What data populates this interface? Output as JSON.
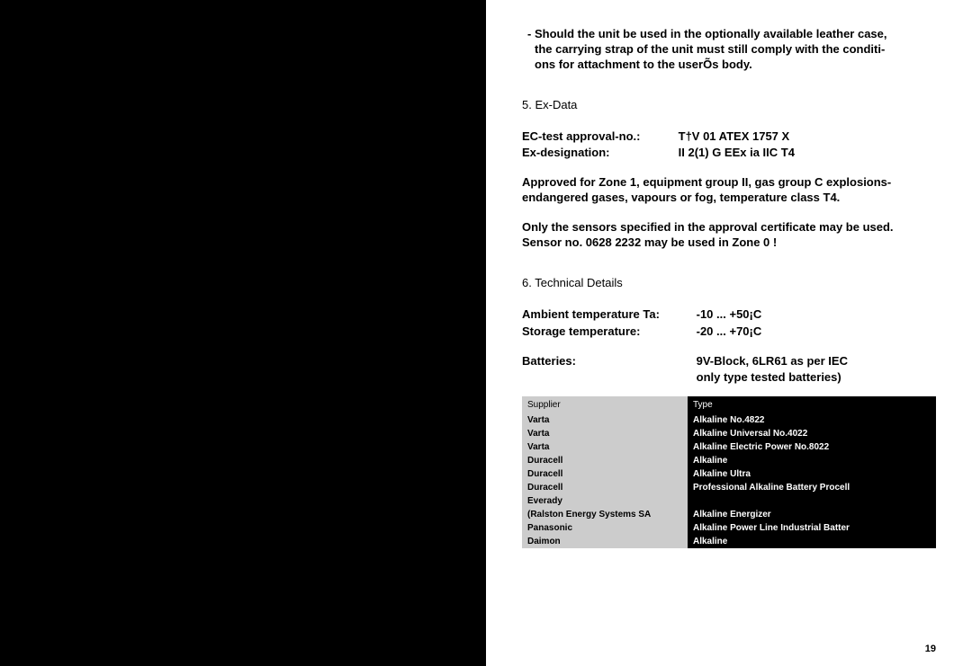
{
  "intro_bullet": {
    "marker": "-",
    "line1": "Should the unit be used in the optionally available leather case,",
    "line2": "the carrying strap of the unit must still comply with the conditi-",
    "line3": "ons for attachment to the userÕs body."
  },
  "section5_title": "5. Ex-Data",
  "ec_approval": {
    "label": "EC-test approval-no.:",
    "value": "T†V 01 ATEX 1757 X"
  },
  "ex_designation": {
    "label": "Ex-designation:",
    "value": "II 2(1) G   EEx ia IIC T4"
  },
  "approved_text": "Approved for Zone 1, equipment group II, gas group C explosions-endangered gases, vapours or fog, temperature class T4.",
  "sensors_text1": "Only the sensors specified in the approval certificate may be used.",
  "sensors_text2": "Sensor no. 0628 2232 may be used in Zone 0 !",
  "section6_title": "6. Technical Details",
  "ambient": {
    "label": "Ambient temperature Ta:",
    "value": "-10 ... +50¡C"
  },
  "storage": {
    "label": "Storage temperature:",
    "value": "-20 ... +70¡C"
  },
  "batteries_label": "Batteries:",
  "batteries_value1": "9V-Block, 6LR61 as per IEC",
  "batteries_value2": "only  type tested batteries)",
  "table": {
    "header_supplier": "Supplier",
    "header_type": "Type",
    "rows": [
      {
        "supplier": "Varta",
        "type": "Alkaline No.4822"
      },
      {
        "supplier": "Varta",
        "type": "Alkaline Universal No.4022"
      },
      {
        "supplier": "Varta",
        "type": "Alkaline Electric Power No.8022"
      },
      {
        "supplier": "Duracell",
        "type": "Alkaline"
      },
      {
        "supplier": "Duracell",
        "type": "Alkaline Ultra"
      },
      {
        "supplier": "Duracell",
        "type": "Professional Alkaline Battery Procell"
      },
      {
        "supplier": "Everady",
        "type": ""
      },
      {
        "supplier": "(Ralston Energy Systems SA",
        "type": "Alkaline Energizer"
      },
      {
        "supplier": "Panasonic",
        "type": "Alkaline Power Line Industrial Batter"
      },
      {
        "supplier": "Daimon",
        "type": "Alkaline"
      }
    ]
  },
  "page_number": "19",
  "colors": {
    "page_bg": "#ffffff",
    "outer_bg": "#000000",
    "supplier_col_bg": "#cccccc",
    "type_col_bg": "#000000",
    "type_col_fg": "#ffffff"
  }
}
